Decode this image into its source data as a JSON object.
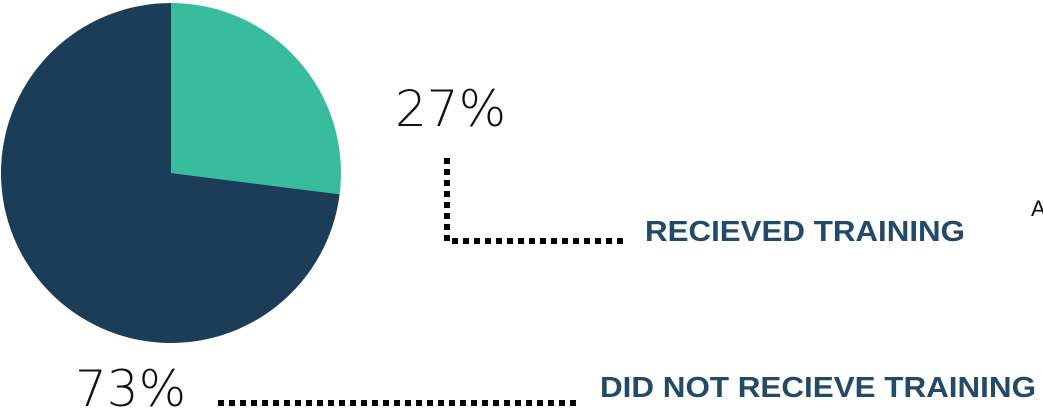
{
  "chart_data": {
    "type": "pie",
    "categories": [
      "RECIEVED TRAINING",
      "DID NOT RECIEVE TRAINING"
    ],
    "values": [
      27,
      73
    ],
    "value_labels": [
      "27%",
      "73%"
    ],
    "colors": [
      "#38bc9e",
      "#1b3d58"
    ],
    "annotation": "A"
  }
}
